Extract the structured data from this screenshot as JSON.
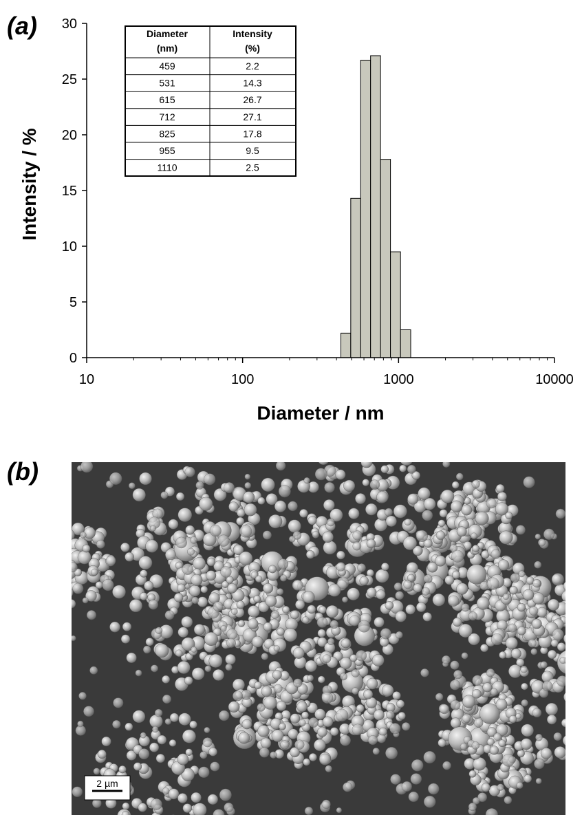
{
  "panels": {
    "a_label": "(a)",
    "b_label": "(b)"
  },
  "chart_data": {
    "type": "bar",
    "xscale": "log",
    "xlim": [
      10,
      10000
    ],
    "ylim": [
      0,
      30
    ],
    "xticks": [
      "10",
      "100",
      "1000",
      "10000"
    ],
    "yticks": [
      "0",
      "5",
      "10",
      "15",
      "20",
      "25",
      "30"
    ],
    "xlabel": "Diameter / nm",
    "ylabel": "Intensity / %",
    "grid": false,
    "bar_color": "#c8c8bc",
    "bar_edge_color": "#000000",
    "categories": [
      459,
      531,
      615,
      712,
      825,
      955,
      1110
    ],
    "values": [
      2.2,
      14.3,
      26.7,
      27.1,
      17.8,
      9.5,
      2.5
    ],
    "table": {
      "headers": [
        [
          "Diameter",
          "(nm)"
        ],
        [
          "Intensity",
          "(%)"
        ]
      ],
      "rows": [
        [
          "459",
          "2.2"
        ],
        [
          "531",
          "14.3"
        ],
        [
          "615",
          "26.7"
        ],
        [
          "712",
          "27.1"
        ],
        [
          "825",
          "17.8"
        ],
        [
          "955",
          "9.5"
        ],
        [
          "1110",
          "2.5"
        ]
      ]
    }
  },
  "sem_image": {
    "scale_bar_label": "2 µm",
    "background_color": "#3a3a3a",
    "particle_color": "#b4b4b4"
  }
}
